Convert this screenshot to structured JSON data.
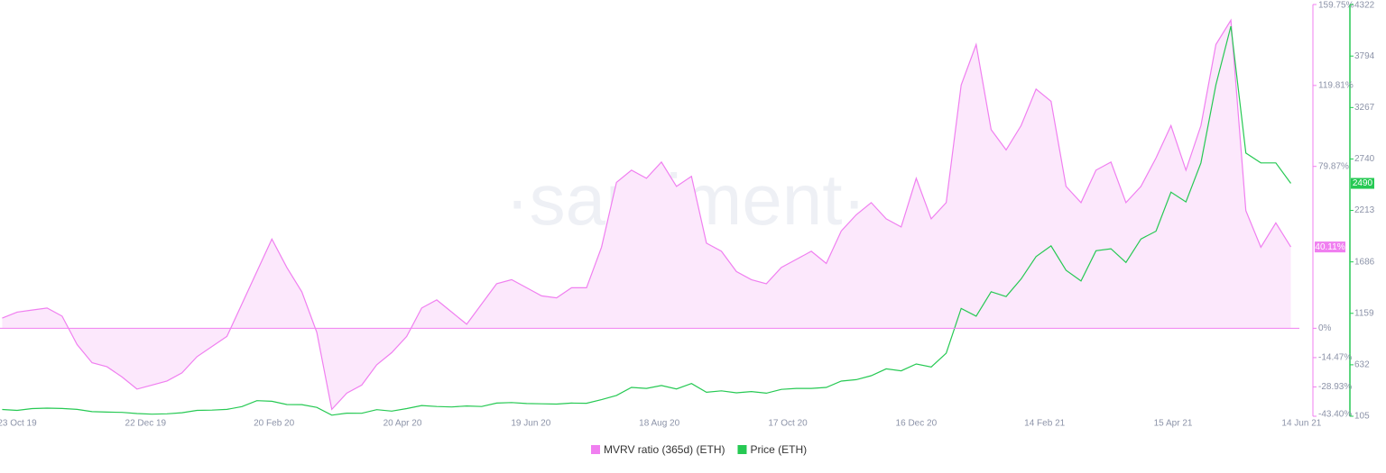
{
  "chart_data": {
    "type": "line",
    "watermark": "·santiment·",
    "x": [
      "2019-10-16",
      "2019-10-23",
      "2019-10-30",
      "2019-11-06",
      "2019-11-13",
      "2019-11-20",
      "2019-11-27",
      "2019-12-04",
      "2019-12-11",
      "2019-12-18",
      "2019-12-25",
      "2020-01-01",
      "2020-01-08",
      "2020-01-15",
      "2020-01-22",
      "2020-01-29",
      "2020-02-05",
      "2020-02-12",
      "2020-02-19",
      "2020-02-26",
      "2020-03-04",
      "2020-03-11",
      "2020-03-18",
      "2020-03-25",
      "2020-04-01",
      "2020-04-08",
      "2020-04-15",
      "2020-04-22",
      "2020-04-29",
      "2020-05-06",
      "2020-05-13",
      "2020-05-20",
      "2020-05-27",
      "2020-06-03",
      "2020-06-10",
      "2020-06-17",
      "2020-06-24",
      "2020-07-01",
      "2020-07-08",
      "2020-07-15",
      "2020-07-22",
      "2020-07-29",
      "2020-08-05",
      "2020-08-12",
      "2020-08-19",
      "2020-08-26",
      "2020-09-02",
      "2020-09-09",
      "2020-09-16",
      "2020-09-23",
      "2020-09-30",
      "2020-10-07",
      "2020-10-14",
      "2020-10-21",
      "2020-10-28",
      "2020-11-04",
      "2020-11-11",
      "2020-11-18",
      "2020-11-25",
      "2020-12-02",
      "2020-12-09",
      "2020-12-16",
      "2020-12-23",
      "2020-12-30",
      "2021-01-06",
      "2021-01-13",
      "2021-01-20",
      "2021-01-27",
      "2021-02-03",
      "2021-02-10",
      "2021-02-17",
      "2021-02-24",
      "2021-03-03",
      "2021-03-10",
      "2021-03-17",
      "2021-03-24",
      "2021-03-31",
      "2021-04-07",
      "2021-04-14",
      "2021-04-21",
      "2021-04-28",
      "2021-05-05",
      "2021-05-12",
      "2021-05-19",
      "2021-05-26",
      "2021-06-02",
      "2021-06-09"
    ],
    "series": [
      {
        "name": "MVRV ratio (365d) (ETH)",
        "color": "#f07ff0",
        "fill": "#fce8fc",
        "axis": "y",
        "last_label": "40.11%",
        "values": [
          5,
          8,
          9,
          10,
          6,
          -8,
          -17,
          -19,
          -24,
          -30,
          -28,
          -26,
          -22,
          -14,
          -9,
          -4,
          12,
          28,
          44,
          30,
          18,
          -2,
          -40,
          -32,
          -28,
          -18,
          -12,
          -4,
          10,
          14,
          8,
          2,
          12,
          22,
          24,
          20,
          16,
          15,
          20,
          20,
          40,
          72,
          78,
          74,
          82,
          70,
          75,
          42,
          38,
          28,
          24,
          22,
          30,
          34,
          38,
          32,
          48,
          56,
          62,
          54,
          50,
          74,
          54,
          62,
          120,
          140,
          98,
          88,
          100,
          118,
          112,
          70,
          62,
          78,
          82,
          62,
          70,
          84,
          100,
          78,
          100,
          140,
          152,
          58,
          40,
          52,
          40.11
        ]
      },
      {
        "name": "Price (ETH)",
        "color": "#26c953",
        "axis": "y2",
        "last_label": "2490",
        "values": [
          174,
          165,
          183,
          188,
          184,
          175,
          152,
          147,
          145,
          133,
          126,
          130,
          141,
          165,
          168,
          175,
          204,
          265,
          258,
          225,
          224,
          195,
          116,
          136,
          135,
          172,
          158,
          183,
          215,
          205,
          200,
          210,
          205,
          240,
          245,
          235,
          232,
          230,
          240,
          238,
          275,
          318,
          400,
          390,
          420,
          385,
          440,
          350,
          365,
          345,
          358,
          341,
          380,
          390,
          390,
          400,
          465,
          480,
          520,
          590,
          570,
          640,
          610,
          750,
          1210,
          1130,
          1380,
          1330,
          1510,
          1740,
          1850,
          1600,
          1490,
          1800,
          1820,
          1680,
          1920,
          2000,
          2400,
          2300,
          2700,
          3500,
          4100,
          2800,
          2700,
          2700,
          2490
        ]
      }
    ],
    "xlim": [
      "2019-10-15",
      "2021-06-13"
    ],
    "xticks": [
      {
        "value": "2019-10-23",
        "label": "23 Oct 19"
      },
      {
        "value": "2019-12-22",
        "label": "22 Dec 19"
      },
      {
        "value": "2020-02-20",
        "label": "20 Feb 20"
      },
      {
        "value": "2020-04-20",
        "label": "20 Apr 20"
      },
      {
        "value": "2020-06-19",
        "label": "19 Jun 20"
      },
      {
        "value": "2020-08-18",
        "label": "18 Aug 20"
      },
      {
        "value": "2020-10-17",
        "label": "17 Oct 20"
      },
      {
        "value": "2020-12-16",
        "label": "16 Dec 20"
      },
      {
        "value": "2021-02-14",
        "label": "14 Feb 21"
      },
      {
        "value": "2021-04-15",
        "label": "15 Apr 21"
      },
      {
        "value": "2021-06-14",
        "label": "14 Jun 21"
      }
    ],
    "ylim": [
      -43.4,
      159.75
    ],
    "yticks": [
      {
        "value": -43.4,
        "label": "-43.40%"
      },
      {
        "value": -28.93,
        "label": "-28.93%"
      },
      {
        "value": -14.47,
        "label": "-14.47%"
      },
      {
        "value": 0,
        "label": "0%"
      },
      {
        "value": 79.87,
        "label": "79.87%"
      },
      {
        "value": 119.81,
        "label": "119.81%"
      },
      {
        "value": 159.75,
        "label": "159.75%"
      }
    ],
    "y2lim": [
      105,
      4322
    ],
    "y2ticks": [
      105,
      632,
      1159,
      1686,
      2213,
      2740,
      3267,
      3794,
      4322
    ],
    "grid": false,
    "legend": "bottom"
  }
}
